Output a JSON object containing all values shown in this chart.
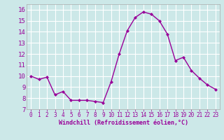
{
  "x": [
    0,
    1,
    2,
    3,
    4,
    5,
    6,
    7,
    8,
    9,
    10,
    11,
    12,
    13,
    14,
    15,
    16,
    17,
    18,
    19,
    20,
    21,
    22,
    23
  ],
  "y": [
    10.0,
    9.7,
    9.9,
    8.3,
    8.6,
    7.8,
    7.8,
    7.8,
    7.7,
    7.6,
    9.5,
    12.0,
    14.1,
    15.3,
    15.8,
    15.6,
    15.0,
    13.8,
    11.4,
    11.7,
    10.5,
    9.8,
    9.2,
    8.8
  ],
  "line_color": "#990099",
  "marker": "D",
  "marker_size": 2.0,
  "bg_color": "#cce8e8",
  "grid_color": "#ffffff",
  "xlabel": "Windchill (Refroidissement éolien,°C)",
  "xlabel_color": "#990099",
  "tick_color": "#990099",
  "ylim": [
    7,
    16.5
  ],
  "yticks": [
    7,
    8,
    9,
    10,
    11,
    12,
    13,
    14,
    15,
    16
  ],
  "xticks": [
    0,
    1,
    2,
    3,
    4,
    5,
    6,
    7,
    8,
    9,
    10,
    11,
    12,
    13,
    14,
    15,
    16,
    17,
    18,
    19,
    20,
    21,
    22,
    23
  ],
  "spine_color": "#aaaaaa",
  "linewidth": 1.0
}
